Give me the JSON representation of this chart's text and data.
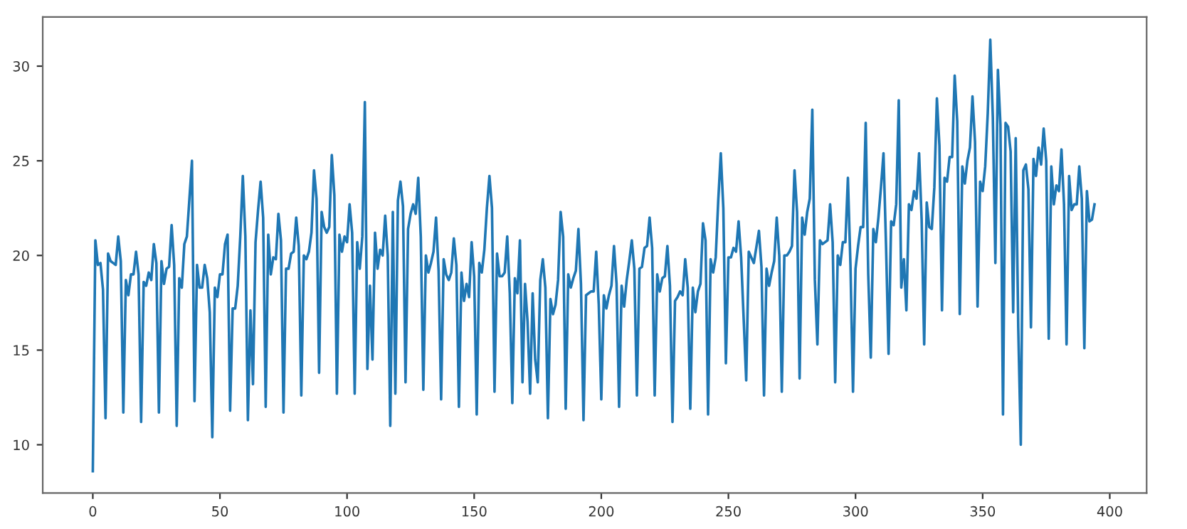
{
  "chart_data": {
    "type": "line",
    "xlim": [
      -19.7,
      414.5
    ],
    "ylim": [
      7.45,
      32.6
    ],
    "xticks": [
      0,
      50,
      100,
      150,
      200,
      250,
      300,
      350,
      400
    ],
    "yticks": [
      10,
      15,
      20,
      25,
      30
    ],
    "grid": false,
    "series": [
      {
        "color": "#1f77b4",
        "x": [
          0,
          1,
          2,
          3,
          4,
          5,
          6,
          7,
          8,
          9,
          10,
          11,
          12,
          13,
          14,
          15,
          16,
          17,
          18,
          19,
          20,
          21,
          22,
          23,
          24,
          25,
          26,
          27,
          28,
          29,
          30,
          31,
          32,
          33,
          34,
          35,
          36,
          37,
          38,
          39,
          40,
          41,
          42,
          43,
          44,
          45,
          46,
          47,
          48,
          49,
          50,
          51,
          52,
          53,
          54,
          55,
          56,
          57,
          58,
          59,
          60,
          61,
          62,
          63,
          64,
          65,
          66,
          67,
          68,
          69,
          70,
          71,
          72,
          73,
          74,
          75,
          76,
          77,
          78,
          79,
          80,
          81,
          82,
          83,
          84,
          85,
          86,
          87,
          88,
          89,
          90,
          91,
          92,
          93,
          94,
          95,
          96,
          97,
          98,
          99,
          100,
          101,
          102,
          103,
          104,
          105,
          106,
          107,
          108,
          109,
          110,
          111,
          112,
          113,
          114,
          115,
          116,
          117,
          118,
          119,
          120,
          121,
          122,
          123,
          124,
          125,
          126,
          127,
          128,
          129,
          130,
          131,
          132,
          133,
          134,
          135,
          136,
          137,
          138,
          139,
          140,
          141,
          142,
          143,
          144,
          145,
          146,
          147,
          148,
          149,
          150,
          151,
          152,
          153,
          154,
          155,
          156,
          157,
          158,
          159,
          160,
          161,
          162,
          163,
          164,
          165,
          166,
          167,
          168,
          169,
          170,
          171,
          172,
          173,
          174,
          175,
          176,
          177,
          178,
          179,
          180,
          181,
          182,
          183,
          184,
          185,
          186,
          187,
          188,
          189,
          190,
          191,
          192,
          193,
          194,
          195,
          196,
          197,
          198,
          199,
          200,
          201,
          202,
          203,
          204,
          205,
          206,
          207,
          208,
          209,
          210,
          211,
          212,
          213,
          214,
          215,
          216,
          217,
          218,
          219,
          220,
          221,
          222,
          223,
          224,
          225,
          226,
          227,
          228,
          229,
          230,
          231,
          232,
          233,
          234,
          235,
          236,
          237,
          238,
          239,
          240,
          241,
          242,
          243,
          244,
          245,
          246,
          247,
          248,
          249,
          250,
          251,
          252,
          253,
          254,
          255,
          257,
          258,
          260,
          262,
          263,
          264,
          265,
          266,
          267,
          268,
          269,
          270,
          271,
          272,
          273,
          274,
          275,
          276,
          277,
          278,
          279,
          280,
          281,
          282,
          283,
          284,
          285,
          286,
          287,
          288,
          289,
          290,
          291,
          292,
          293,
          294,
          295,
          296,
          297,
          298,
          299,
          300,
          301,
          302,
          303,
          304,
          305,
          306,
          307,
          308,
          309,
          310,
          311,
          312,
          313,
          314,
          315,
          316,
          317,
          318,
          319,
          320,
          321,
          322,
          323,
          324,
          325,
          326,
          327,
          328,
          329,
          330,
          331,
          332,
          333,
          334,
          335,
          336,
          337,
          338,
          339,
          340,
          341,
          342,
          343,
          344,
          345,
          346,
          347,
          348,
          349,
          350,
          351,
          352,
          353,
          354,
          355,
          356,
          357,
          358,
          359,
          360,
          361,
          362,
          363,
          364,
          365,
          366,
          367,
          368,
          369,
          370,
          371,
          372,
          373,
          374,
          375,
          376,
          377,
          378,
          379,
          380,
          381,
          382,
          383,
          384,
          385,
          386,
          387,
          388,
          389,
          390,
          391,
          392,
          393,
          394
        ],
        "values": [
          8.6,
          20.8,
          19.5,
          19.6,
          18.2,
          11.4,
          20.1,
          19.7,
          19.6,
          19.5,
          21.0,
          19.7,
          11.7,
          18.7,
          17.9,
          19.0,
          19.0,
          20.2,
          19.0,
          11.2,
          18.6,
          18.4,
          19.1,
          18.7,
          20.6,
          19.6,
          11.7,
          19.7,
          18.5,
          19.3,
          19.4,
          21.6,
          19.5,
          11.0,
          18.8,
          18.3,
          20.6,
          21.0,
          23.0,
          25.0,
          12.3,
          19.5,
          18.3,
          18.3,
          19.5,
          18.8,
          17.0,
          10.4,
          18.3,
          17.8,
          19.0,
          19.0,
          20.6,
          21.1,
          11.8,
          17.2,
          17.2,
          18.4,
          21.0,
          24.2,
          21.0,
          11.3,
          17.1,
          13.2,
          20.7,
          22.4,
          23.9,
          22.0,
          12.0,
          21.1,
          19.0,
          19.9,
          19.8,
          22.2,
          20.8,
          11.7,
          19.3,
          19.3,
          20.1,
          20.2,
          22.0,
          20.5,
          12.6,
          20.0,
          19.8,
          20.2,
          21.2,
          24.5,
          23.0,
          13.8,
          22.3,
          21.5,
          21.2,
          21.5,
          25.3,
          23.2,
          12.7,
          21.1,
          20.2,
          21.0,
          20.7,
          22.7,
          21.2,
          12.7,
          20.7,
          19.3,
          21.0,
          28.1,
          14.0,
          18.4,
          14.5,
          21.2,
          19.3,
          20.3,
          20.0,
          22.1,
          20.0,
          11.0,
          22.3,
          12.7,
          22.9,
          23.9,
          22.6,
          13.3,
          21.4,
          22.2,
          22.7,
          22.2,
          24.1,
          21.0,
          12.9,
          20.0,
          19.1,
          19.6,
          20.2,
          22.0,
          19.2,
          12.4,
          19.8,
          19.0,
          18.7,
          19.1,
          20.9,
          19.5,
          12.0,
          19.1,
          17.6,
          18.5,
          17.8,
          20.7,
          18.9,
          11.6,
          19.6,
          19.1,
          20.3,
          22.5,
          24.2,
          22.5,
          12.8,
          20.1,
          18.9,
          18.9,
          19.1,
          21.0,
          18.0,
          12.2,
          18.8,
          18.0,
          20.8,
          13.3,
          18.5,
          16.5,
          12.7,
          18.0,
          14.5,
          13.3,
          18.7,
          19.8,
          18.3,
          11.4,
          17.7,
          16.9,
          17.4,
          18.7,
          22.3,
          21.0,
          11.9,
          19.0,
          18.3,
          18.8,
          19.2,
          21.4,
          18.5,
          11.3,
          17.9,
          18.0,
          18.1,
          18.1,
          20.2,
          17.4,
          12.4,
          17.9,
          17.2,
          17.9,
          18.4,
          20.5,
          18.5,
          12.0,
          18.4,
          17.3,
          18.7,
          19.7,
          20.8,
          19.3,
          12.6,
          19.3,
          19.4,
          20.4,
          20.5,
          22.0,
          20.4,
          12.6,
          19.0,
          18.1,
          18.8,
          18.9,
          20.5,
          18.4,
          11.2,
          17.6,
          17.8,
          18.1,
          17.9,
          19.8,
          18.3,
          11.9,
          18.3,
          17.0,
          18.1,
          18.5,
          21.7,
          20.8,
          11.6,
          19.8,
          19.1,
          19.9,
          22.9,
          25.4,
          22.5,
          14.3,
          19.9,
          19.9,
          20.4,
          20.2,
          21.8,
          19.9,
          13.4,
          20.2,
          19.6,
          21.3,
          19.4,
          12.6,
          19.3,
          18.4,
          19.1,
          19.7,
          22.0,
          20.0,
          12.8,
          20.0,
          20.0,
          20.2,
          20.5,
          24.5,
          22.3,
          13.5,
          22.0,
          21.1,
          22.3,
          23.0,
          27.7,
          18.7,
          15.3,
          20.8,
          20.6,
          20.7,
          20.8,
          22.7,
          20.7,
          13.3,
          20.0,
          19.5,
          20.7,
          20.7,
          24.1,
          19.5,
          12.8,
          19.3,
          20.5,
          21.5,
          21.5,
          27.0,
          19.0,
          14.6,
          21.4,
          20.7,
          22.0,
          23.6,
          25.4,
          20.5,
          14.8,
          21.8,
          21.6,
          22.7,
          28.2,
          18.3,
          19.8,
          17.1,
          22.7,
          22.4,
          23.4,
          23.0,
          25.4,
          21.9,
          15.3,
          22.8,
          21.5,
          21.4,
          23.6,
          28.3,
          25.8,
          17.1,
          24.1,
          23.9,
          25.2,
          25.2,
          29.5,
          27.1,
          16.9,
          24.7,
          23.8,
          25.0,
          25.7,
          28.4,
          26.0,
          17.3,
          23.9,
          23.4,
          24.7,
          27.5,
          31.4,
          27.3,
          19.6,
          29.8,
          26.9,
          11.6,
          27.0,
          26.8,
          25.5,
          17.0,
          26.2,
          16.2,
          10.0,
          24.5,
          24.8,
          23.5,
          16.2,
          25.1,
          24.2,
          25.7,
          24.8,
          26.7,
          25.0,
          15.6,
          24.7,
          22.7,
          23.7,
          23.4,
          25.6,
          22.7,
          15.3,
          24.2,
          22.4,
          22.7,
          22.7,
          24.7,
          23.0,
          15.1,
          23.4,
          21.8,
          21.9,
          22.7
        ]
      }
    ]
  }
}
